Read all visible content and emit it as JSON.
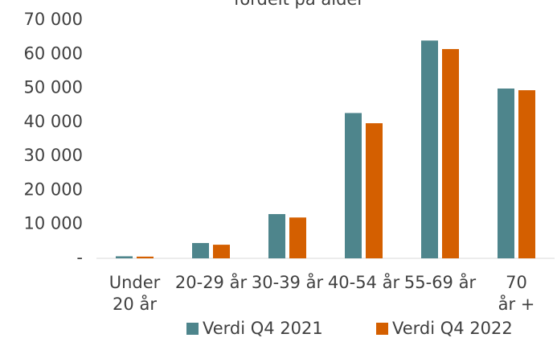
{
  "chart_data": {
    "type": "bar",
    "title": "fordelt på alder",
    "categories": [
      "Under 20 år",
      "20-29 år",
      "30-39 år",
      "40-54 år",
      "55-69 år",
      "70 år +"
    ],
    "series": [
      {
        "name": "Verdi Q4 2021",
        "color": "#4e858c",
        "values": [
          600,
          4500,
          13000,
          42700,
          64000,
          49900
        ]
      },
      {
        "name": "Verdi Q4 2022",
        "color": "#d45f00",
        "values": [
          500,
          4000,
          12000,
          39700,
          61500,
          49400
        ]
      }
    ],
    "ylim": [
      0,
      70000
    ],
    "yticks": [
      {
        "value": 0,
        "label": "-"
      },
      {
        "value": 10000,
        "label": "10 000"
      },
      {
        "value": 20000,
        "label": "20 000"
      },
      {
        "value": 30000,
        "label": "30 000"
      },
      {
        "value": 40000,
        "label": "40 000"
      },
      {
        "value": 50000,
        "label": "50 000"
      },
      {
        "value": 60000,
        "label": "60 000"
      },
      {
        "value": 70000,
        "label": "70 000"
      }
    ],
    "grid": false,
    "legend": "bottom"
  }
}
